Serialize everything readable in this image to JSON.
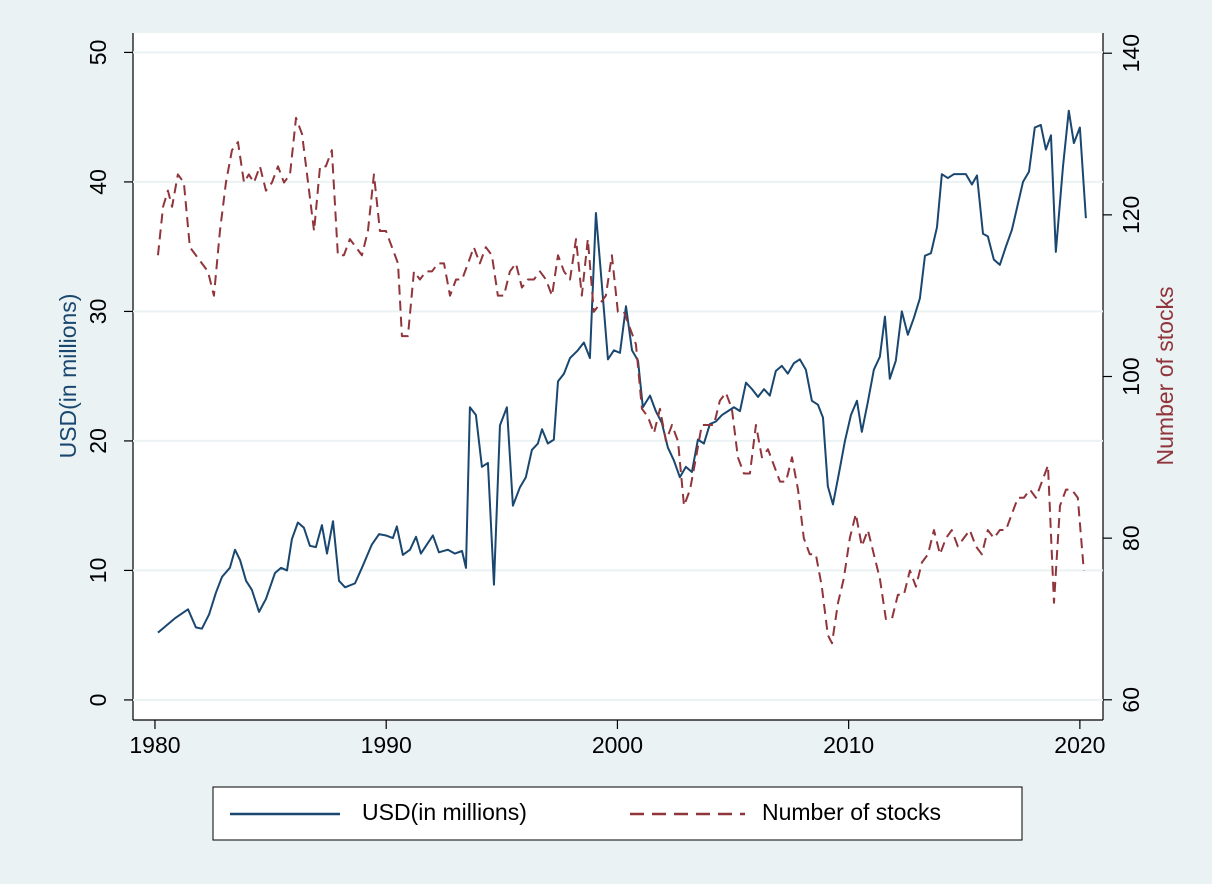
{
  "chart_data": {
    "type": "line",
    "y_label": "USD(in millions)",
    "y2_label": "Number of stocks",
    "xlim": [
      1979.05,
      2021.0
    ],
    "xticks": [
      1980,
      1990,
      2000,
      2010,
      2020
    ],
    "ylim": [
      -1.55,
      51.5
    ],
    "yticks": [
      0,
      10,
      20,
      30,
      40,
      50
    ],
    "y2lim": [
      57.5,
      142.5
    ],
    "y2ticks": [
      60,
      80,
      100,
      120,
      140
    ],
    "grid": true,
    "legend": "bottom",
    "series": [
      {
        "name": "USD(in millions)",
        "color": "#1a476f",
        "style": "solid",
        "x": [
          1980.13,
          1980.86,
          1981.43,
          1981.77,
          1982.03,
          1982.34,
          1982.64,
          1982.9,
          1983.24,
          1983.46,
          1983.68,
          1983.94,
          1984.19,
          1984.5,
          1984.8,
          1985.19,
          1985.45,
          1985.71,
          1985.92,
          1986.18,
          1986.44,
          1986.7,
          1986.96,
          1987.22,
          1987.44,
          1987.7,
          1987.96,
          1988.22,
          1988.65,
          1988.95,
          1989.38,
          1989.69,
          1989.99,
          1990.29,
          1990.46,
          1990.72,
          1991.03,
          1991.29,
          1991.5,
          1991.76,
          1992.02,
          1992.28,
          1992.67,
          1992.97,
          1993.28,
          1993.45,
          1993.62,
          1993.88,
          1994.14,
          1994.4,
          1994.66,
          1994.92,
          1995.22,
          1995.48,
          1995.78,
          1996.04,
          1996.3,
          1996.56,
          1996.74,
          1996.99,
          1997.25,
          1997.43,
          1997.69,
          1997.95,
          1998.29,
          1998.55,
          1998.81,
          1999.07,
          1999.33,
          1999.59,
          1999.85,
          2000.11,
          2000.37,
          2000.63,
          2000.89,
          2001.1,
          2001.41,
          2001.66,
          2001.92,
          2002.18,
          2002.44,
          2002.7,
          2002.96,
          2003.22,
          2003.48,
          2003.74,
          2004.0,
          2004.26,
          2004.52,
          2004.78,
          2005.04,
          2005.3,
          2005.56,
          2005.82,
          2006.08,
          2006.34,
          2006.59,
          2006.85,
          2007.11,
          2007.37,
          2007.63,
          2007.89,
          2008.15,
          2008.41,
          2008.67,
          2008.89,
          2009.1,
          2009.32,
          2009.58,
          2009.84,
          2010.1,
          2010.36,
          2010.57,
          2010.83,
          2011.09,
          2011.35,
          2011.57,
          2011.78,
          2012.04,
          2012.3,
          2012.56,
          2012.82,
          2013.08,
          2013.3,
          2013.56,
          2013.82,
          2014.03,
          2014.29,
          2014.55,
          2014.81,
          2015.07,
          2015.33,
          2015.55,
          2015.81,
          2016.02,
          2016.28,
          2016.54,
          2016.8,
          2017.06,
          2017.32,
          2017.54,
          2017.8,
          2018.05,
          2018.31,
          2018.53,
          2018.75,
          2018.96,
          2019.27,
          2019.52,
          2019.74,
          2020.0,
          2020.26
        ],
        "values": [
          5.2,
          6.3,
          7.0,
          5.6,
          5.5,
          6.6,
          8.3,
          9.5,
          10.2,
          11.6,
          10.8,
          9.2,
          8.5,
          6.8,
          7.8,
          9.8,
          10.2,
          10.0,
          12.4,
          13.7,
          13.3,
          11.9,
          11.8,
          13.5,
          11.3,
          13.8,
          9.2,
          8.7,
          9.0,
          10.2,
          12.0,
          12.8,
          12.7,
          12.5,
          13.4,
          11.2,
          11.6,
          12.6,
          11.3,
          12.0,
          12.7,
          11.4,
          11.6,
          11.3,
          11.5,
          10.2,
          22.6,
          22.0,
          18.0,
          18.3,
          8.9,
          21.2,
          22.6,
          15.0,
          16.4,
          17.2,
          19.3,
          19.8,
          20.9,
          19.8,
          20.1,
          24.6,
          25.2,
          26.4,
          27.0,
          27.6,
          26.4,
          37.6,
          32.0,
          26.3,
          27.0,
          26.8,
          30.4,
          27.0,
          26.2,
          22.6,
          23.5,
          22.3,
          21.4,
          19.5,
          18.5,
          17.2,
          18.0,
          17.6,
          20.1,
          19.8,
          21.3,
          21.5,
          22.0,
          22.3,
          22.6,
          22.3,
          24.5,
          24.0,
          23.4,
          24.0,
          23.5,
          25.4,
          25.8,
          25.2,
          26.0,
          26.3,
          25.5,
          23.1,
          22.8,
          21.8,
          16.5,
          15.1,
          17.5,
          20.0,
          22.0,
          23.1,
          20.7,
          23.0,
          25.5,
          26.5,
          29.6,
          24.8,
          26.2,
          30.0,
          28.2,
          29.5,
          31.0,
          34.3,
          34.5,
          36.5,
          40.6,
          40.3,
          40.6,
          40.6,
          40.6,
          39.8,
          40.5,
          36.0,
          35.8,
          34.0,
          33.6,
          35.0,
          36.3,
          38.3,
          40.0,
          40.8,
          44.2,
          44.4,
          42.5,
          43.6,
          34.6,
          41.2,
          45.5,
          43.0,
          44.2,
          37.2
        ]
      },
      {
        "name": "Number of stocks",
        "color": "#90353b",
        "style": "dashed",
        "axis": "y2",
        "x": [
          1980.13,
          1980.35,
          1980.56,
          1980.74,
          1980.99,
          1981.25,
          1981.51,
          1981.77,
          1982.03,
          1982.29,
          1982.55,
          1982.81,
          1983.07,
          1983.33,
          1983.59,
          1983.85,
          1984.06,
          1984.28,
          1984.54,
          1984.8,
          1985.06,
          1985.32,
          1985.58,
          1985.84,
          1986.1,
          1986.36,
          1986.62,
          1986.88,
          1987.14,
          1987.39,
          1987.65,
          1987.91,
          1988.17,
          1988.43,
          1988.69,
          1988.95,
          1989.21,
          1989.47,
          1989.73,
          1989.99,
          1990.25,
          1990.51,
          1990.68,
          1990.94,
          1991.2,
          1991.46,
          1991.72,
          1991.98,
          1992.24,
          1992.5,
          1992.76,
          1993.02,
          1993.28,
          1993.54,
          1993.79,
          1994.05,
          1994.31,
          1994.57,
          1994.83,
          1995.09,
          1995.35,
          1995.61,
          1995.87,
          1996.13,
          1996.39,
          1996.65,
          1996.91,
          1997.17,
          1997.43,
          1997.69,
          1997.95,
          1998.21,
          1998.46,
          1998.72,
          1998.98,
          1999.24,
          1999.5,
          1999.76,
          2000.02,
          2000.28,
          2000.54,
          2000.8,
          2001.06,
          2001.32,
          2001.58,
          2001.84,
          2002.1,
          2002.36,
          2002.62,
          2002.88,
          2003.14,
          2003.4,
          2003.65,
          2003.91,
          2004.17,
          2004.43,
          2004.69,
          2004.95,
          2005.21,
          2005.47,
          2005.73,
          2005.99,
          2006.25,
          2006.51,
          2006.77,
          2007.03,
          2007.29,
          2007.55,
          2007.81,
          2008.06,
          2008.32,
          2008.58,
          2008.84,
          2009.1,
          2009.28,
          2009.54,
          2009.79,
          2010.05,
          2010.31,
          2010.57,
          2010.83,
          2011.09,
          2011.35,
          2011.61,
          2011.87,
          2012.13,
          2012.39,
          2012.65,
          2012.91,
          2013.17,
          2013.43,
          2013.69,
          2013.95,
          2014.21,
          2014.46,
          2014.72,
          2014.98,
          2015.24,
          2015.5,
          2015.76,
          2016.02,
          2016.28,
          2016.54,
          2016.8,
          2017.06,
          2017.32,
          2017.58,
          2017.84,
          2018.1,
          2018.36,
          2018.62,
          2018.88,
          2019.14,
          2019.4,
          2019.65,
          2019.91,
          2020.17
        ],
        "values": [
          115,
          121,
          123,
          121,
          125,
          124,
          116,
          115,
          114,
          113,
          110,
          118,
          124,
          128,
          129,
          124,
          125,
          124,
          126,
          123,
          124,
          126,
          124,
          125,
          132,
          130,
          124,
          118,
          126,
          126,
          128,
          115,
          115,
          117,
          116,
          115,
          118,
          125,
          118,
          118,
          116,
          114,
          105,
          105,
          113,
          112,
          113,
          113,
          114,
          114,
          110,
          112,
          112,
          114,
          116,
          114,
          116,
          115,
          110,
          110,
          113,
          114,
          111,
          112,
          112,
          113,
          112,
          110,
          115,
          113,
          112,
          117,
          110,
          117,
          108,
          109,
          110,
          115,
          108,
          108,
          106,
          104,
          96,
          95,
          93,
          96,
          92,
          94,
          92,
          84,
          86,
          90,
          94,
          94,
          94,
          97,
          98,
          96,
          90,
          88,
          88,
          94,
          90,
          91,
          89,
          87,
          87,
          90,
          86,
          80,
          78,
          78,
          74,
          68,
          67,
          72,
          75,
          80,
          83,
          79,
          81,
          78,
          75,
          70,
          70,
          73,
          73,
          76,
          74,
          77,
          78,
          81,
          78,
          80,
          81,
          79,
          80,
          81,
          79,
          78,
          81,
          80,
          81,
          81,
          83,
          85,
          85,
          86,
          85,
          87,
          89,
          72,
          84,
          86,
          86,
          85,
          76
        ]
      }
    ]
  }
}
